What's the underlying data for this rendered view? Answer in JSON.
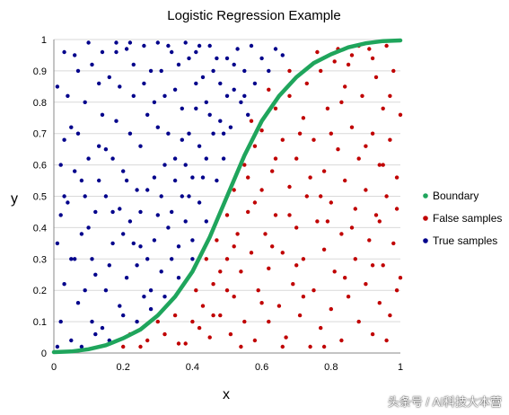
{
  "chart_data": {
    "type": "scatter",
    "title": "Logistic Regression Example",
    "xlabel": "x",
    "ylabel": "y",
    "xlim": [
      0,
      1
    ],
    "ylim": [
      0,
      1
    ],
    "xticks": [
      "0",
      "0.2",
      "0.4",
      "0.6",
      "0.8",
      "1"
    ],
    "yticks": [
      "0",
      "0.1",
      "0.2",
      "0.3",
      "0.4",
      "0.5",
      "0.6",
      "0.7",
      "0.8",
      "0.9",
      "1"
    ],
    "grid": "horizontal",
    "legend_position": "right",
    "series": [
      {
        "name": "Boundary",
        "color": "#1fa55c",
        "points": [
          [
            0,
            0.003
          ],
          [
            0.05,
            0.005
          ],
          [
            0.1,
            0.012
          ],
          [
            0.15,
            0.025
          ],
          [
            0.2,
            0.047
          ],
          [
            0.25,
            0.075
          ],
          [
            0.3,
            0.12
          ],
          [
            0.35,
            0.18
          ],
          [
            0.4,
            0.26
          ],
          [
            0.45,
            0.37
          ],
          [
            0.5,
            0.5
          ],
          [
            0.55,
            0.63
          ],
          [
            0.6,
            0.74
          ],
          [
            0.65,
            0.82
          ],
          [
            0.7,
            0.88
          ],
          [
            0.75,
            0.925
          ],
          [
            0.8,
            0.953
          ],
          [
            0.85,
            0.975
          ],
          [
            0.9,
            0.988
          ],
          [
            0.95,
            0.995
          ],
          [
            1,
            0.997
          ]
        ]
      },
      {
        "name": "False samples",
        "color": "#c00000",
        "points": [
          [
            0.2,
            0.02
          ],
          [
            0.22,
            0.06
          ],
          [
            0.27,
            0.04
          ],
          [
            0.3,
            0.1
          ],
          [
            0.32,
            0.06
          ],
          [
            0.35,
            0.12
          ],
          [
            0.38,
            0.03
          ],
          [
            0.4,
            0.1
          ],
          [
            0.41,
            0.2
          ],
          [
            0.43,
            0.15
          ],
          [
            0.44,
            0.3
          ],
          [
            0.45,
            0.05
          ],
          [
            0.46,
            0.22
          ],
          [
            0.47,
            0.36
          ],
          [
            0.48,
            0.12
          ],
          [
            0.5,
            0.3
          ],
          [
            0.5,
            0.44
          ],
          [
            0.51,
            0.06
          ],
          [
            0.52,
            0.18
          ],
          [
            0.52,
            0.52
          ],
          [
            0.53,
            0.38
          ],
          [
            0.54,
            0.26
          ],
          [
            0.55,
            0.6
          ],
          [
            0.55,
            0.1
          ],
          [
            0.56,
            0.45
          ],
          [
            0.57,
            0.32
          ],
          [
            0.58,
            0.66
          ],
          [
            0.58,
            0.04
          ],
          [
            0.59,
            0.2
          ],
          [
            0.6,
            0.52
          ],
          [
            0.6,
            0.71
          ],
          [
            0.61,
            0.38
          ],
          [
            0.62,
            0.1
          ],
          [
            0.62,
            0.27
          ],
          [
            0.63,
            0.58
          ],
          [
            0.64,
            0.78
          ],
          [
            0.64,
            0.44
          ],
          [
            0.65,
            0.15
          ],
          [
            0.66,
            0.68
          ],
          [
            0.66,
            0.32
          ],
          [
            0.67,
            0.05
          ],
          [
            0.68,
            0.53
          ],
          [
            0.68,
            0.82
          ],
          [
            0.69,
            0.22
          ],
          [
            0.7,
            0.62
          ],
          [
            0.7,
            0.4
          ],
          [
            0.71,
            0.12
          ],
          [
            0.72,
            0.75
          ],
          [
            0.72,
            0.3
          ],
          [
            0.73,
            0.86
          ],
          [
            0.73,
            0.5
          ],
          [
            0.74,
            0.02
          ],
          [
            0.75,
            0.2
          ],
          [
            0.75,
            0.68
          ],
          [
            0.76,
            0.42
          ],
          [
            0.77,
            0.9
          ],
          [
            0.77,
            0.08
          ],
          [
            0.78,
            0.58
          ],
          [
            0.78,
            0.33
          ],
          [
            0.79,
            0.78
          ],
          [
            0.8,
            0.14
          ],
          [
            0.8,
            0.48
          ],
          [
            0.81,
            0.93
          ],
          [
            0.81,
            0.26
          ],
          [
            0.82,
            0.65
          ],
          [
            0.83,
            0.04
          ],
          [
            0.83,
            0.38
          ],
          [
            0.84,
            0.85
          ],
          [
            0.84,
            0.55
          ],
          [
            0.85,
            0.18
          ],
          [
            0.86,
            0.72
          ],
          [
            0.86,
            0.95
          ],
          [
            0.87,
            0.3
          ],
          [
            0.87,
            0.46
          ],
          [
            0.88,
            0.1
          ],
          [
            0.88,
            0.62
          ],
          [
            0.89,
            0.82
          ],
          [
            0.9,
            0.22
          ],
          [
            0.9,
            0.52
          ],
          [
            0.91,
            0.97
          ],
          [
            0.91,
            0.36
          ],
          [
            0.92,
            0.7
          ],
          [
            0.92,
            0.06
          ],
          [
            0.93,
            0.44
          ],
          [
            0.93,
            0.88
          ],
          [
            0.94,
            0.16
          ],
          [
            0.94,
            0.6
          ],
          [
            0.95,
            0.28
          ],
          [
            0.95,
            0.78
          ],
          [
            0.96,
            0.5
          ],
          [
            0.96,
            0.98
          ],
          [
            0.97,
            0.12
          ],
          [
            0.97,
            0.68
          ],
          [
            0.98,
            0.35
          ],
          [
            0.98,
            0.9
          ],
          [
            0.99,
            0.2
          ],
          [
            0.99,
            0.56
          ],
          [
            1,
            0.24
          ],
          [
            1,
            0.76
          ],
          [
            0.88,
            0.98
          ],
          [
            0.82,
            0.97
          ],
          [
            0.76,
            0.96
          ],
          [
            0.85,
            0.92
          ],
          [
            0.92,
            0.94
          ],
          [
            0.68,
            0.9
          ],
          [
            0.62,
            0.84
          ],
          [
            0.57,
            0.74
          ],
          [
            0.46,
            0.12
          ],
          [
            0.36,
            0.03
          ],
          [
            0.25,
            0.02
          ],
          [
            0.64,
            0.62
          ],
          [
            0.7,
            0.28
          ],
          [
            0.79,
            0.42
          ],
          [
            0.58,
            0.48
          ],
          [
            0.52,
            0.34
          ],
          [
            0.48,
            0.26
          ],
          [
            0.74,
            0.56
          ],
          [
            0.66,
            0.02
          ],
          [
            0.92,
            0.28
          ],
          [
            0.86,
            0.4
          ],
          [
            0.97,
            0.82
          ],
          [
            0.6,
            0.16
          ],
          [
            0.54,
            0.02
          ],
          [
            0.42,
            0.08
          ],
          [
            0.78,
            0.02
          ],
          [
            0.96,
            0.04
          ],
          [
            0.72,
            0.18
          ],
          [
            0.8,
            0.7
          ],
          [
            0.9,
            0.66
          ],
          [
            0.63,
            0.34
          ],
          [
            0.56,
            0.56
          ],
          [
            0.5,
            0.2
          ],
          [
            0.68,
            0.44
          ],
          [
            0.84,
            0.24
          ],
          [
            0.94,
            0.42
          ],
          [
            0.99,
            0.46
          ],
          [
            0.77,
            0.5
          ],
          [
            0.71,
            0.7
          ],
          [
            0.83,
            0.8
          ],
          [
            0.95,
            0.6
          ]
        ]
      },
      {
        "name": "True samples",
        "color": "#00008b",
        "points": [
          [
            0.01,
            0.02
          ],
          [
            0.02,
            0.1
          ],
          [
            0.03,
            0.22
          ],
          [
            0.01,
            0.35
          ],
          [
            0.04,
            0.48
          ],
          [
            0.02,
            0.6
          ],
          [
            0.05,
            0.72
          ],
          [
            0.01,
            0.85
          ],
          [
            0.03,
            0.96
          ],
          [
            0.06,
            0.3
          ],
          [
            0.07,
            0.16
          ],
          [
            0.08,
            0.55
          ],
          [
            0.09,
            0.8
          ],
          [
            0.1,
            0.4
          ],
          [
            0.11,
            0.92
          ],
          [
            0.12,
            0.25
          ],
          [
            0.13,
            0.66
          ],
          [
            0.14,
            0.08
          ],
          [
            0.15,
            0.5
          ],
          [
            0.16,
            0.88
          ],
          [
            0.17,
            0.35
          ],
          [
            0.18,
            0.74
          ],
          [
            0.19,
            0.15
          ],
          [
            0.2,
            0.58
          ],
          [
            0.21,
            0.97
          ],
          [
            0.22,
            0.42
          ],
          [
            0.23,
            0.82
          ],
          [
            0.24,
            0.28
          ],
          [
            0.25,
            0.66
          ],
          [
            0.26,
            0.18
          ],
          [
            0.27,
            0.52
          ],
          [
            0.28,
            0.9
          ],
          [
            0.29,
            0.36
          ],
          [
            0.3,
            0.72
          ],
          [
            0.31,
            0.26
          ],
          [
            0.32,
            0.6
          ],
          [
            0.33,
            0.98
          ],
          [
            0.34,
            0.45
          ],
          [
            0.35,
            0.84
          ],
          [
            0.36,
            0.34
          ],
          [
            0.37,
            0.68
          ],
          [
            0.38,
            0.42
          ],
          [
            0.39,
            0.94
          ],
          [
            0.4,
            0.56
          ],
          [
            0.41,
            0.78
          ],
          [
            0.42,
            0.48
          ],
          [
            0.43,
            0.88
          ],
          [
            0.44,
            0.62
          ],
          [
            0.45,
            0.98
          ],
          [
            0.46,
            0.7
          ],
          [
            0.47,
            0.55
          ],
          [
            0.48,
            0.86
          ],
          [
            0.49,
            0.62
          ],
          [
            0.5,
            0.94
          ],
          [
            0.51,
            0.72
          ],
          [
            0.52,
            0.84
          ],
          [
            0.53,
            0.97
          ],
          [
            0.54,
            0.8
          ],
          [
            0.55,
            0.9
          ],
          [
            0.56,
            0.76
          ],
          [
            0.57,
            0.98
          ],
          [
            0.58,
            0.86
          ],
          [
            0.6,
            0.94
          ],
          [
            0.62,
            0.9
          ],
          [
            0.64,
            0.97
          ],
          [
            0.66,
            0.95
          ],
          [
            0.03,
            0.68
          ],
          [
            0.05,
            0.04
          ],
          [
            0.07,
            0.9
          ],
          [
            0.09,
            0.2
          ],
          [
            0.1,
            0.62
          ],
          [
            0.12,
            0.45
          ],
          [
            0.14,
            0.76
          ],
          [
            0.16,
            0.28
          ],
          [
            0.18,
            0.96
          ],
          [
            0.2,
            0.38
          ],
          [
            0.22,
            0.7
          ],
          [
            0.24,
            0.52
          ],
          [
            0.26,
            0.86
          ],
          [
            0.28,
            0.2
          ],
          [
            0.3,
            0.44
          ],
          [
            0.32,
            0.82
          ],
          [
            0.34,
            0.3
          ],
          [
            0.36,
            0.92
          ],
          [
            0.38,
            0.6
          ],
          [
            0.4,
            0.36
          ],
          [
            0.42,
            0.66
          ],
          [
            0.44,
            0.8
          ],
          [
            0.46,
            0.9
          ],
          [
            0.48,
            0.74
          ],
          [
            0.5,
            0.82
          ],
          [
            0.02,
            0.44
          ],
          [
            0.04,
            0.82
          ],
          [
            0.06,
            0.58
          ],
          [
            0.08,
            0.38
          ],
          [
            0.11,
            0.1
          ],
          [
            0.13,
            0.86
          ],
          [
            0.15,
            0.2
          ],
          [
            0.17,
            0.62
          ],
          [
            0.19,
            0.46
          ],
          [
            0.21,
            0.24
          ],
          [
            0.23,
            0.92
          ],
          [
            0.25,
            0.34
          ],
          [
            0.27,
            0.76
          ],
          [
            0.29,
            0.56
          ],
          [
            0.31,
            0.9
          ],
          [
            0.33,
            0.4
          ],
          [
            0.35,
            0.62
          ],
          [
            0.37,
            0.78
          ],
          [
            0.39,
            0.5
          ],
          [
            0.41,
            0.96
          ],
          [
            0.43,
            0.56
          ],
          [
            0.45,
            0.76
          ],
          [
            0.47,
            0.94
          ],
          [
            0.49,
            0.7
          ],
          [
            0.52,
            0.92
          ],
          [
            0.55,
            0.82
          ],
          [
            0.08,
            0.02
          ],
          [
            0.12,
            0.06
          ],
          [
            0.16,
            0.04
          ],
          [
            0.2,
            0.12
          ],
          [
            0.24,
            0.1
          ],
          [
            0.28,
            0.14
          ],
          [
            0.32,
            0.18
          ],
          [
            0.36,
            0.24
          ],
          [
            0.4,
            0.3
          ],
          [
            0.44,
            0.42
          ],
          [
            0.06,
            0.95
          ],
          [
            0.1,
            0.99
          ],
          [
            0.14,
            0.96
          ],
          [
            0.18,
            0.99
          ],
          [
            0.22,
            0.99
          ],
          [
            0.26,
            0.98
          ],
          [
            0.3,
            0.99
          ],
          [
            0.34,
            0.96
          ],
          [
            0.38,
            0.99
          ],
          [
            0.42,
            0.98
          ],
          [
            0.03,
            0.5
          ],
          [
            0.05,
            0.3
          ],
          [
            0.07,
            0.7
          ],
          [
            0.09,
            0.5
          ],
          [
            0.11,
            0.3
          ],
          [
            0.13,
            0.55
          ],
          [
            0.15,
            0.65
          ],
          [
            0.17,
            0.45
          ],
          [
            0.19,
            0.85
          ],
          [
            0.21,
            0.55
          ],
          [
            0.23,
            0.35
          ],
          [
            0.25,
            0.45
          ],
          [
            0.27,
            0.3
          ],
          [
            0.29,
            0.8
          ],
          [
            0.31,
            0.5
          ],
          [
            0.33,
            0.7
          ],
          [
            0.35,
            0.55
          ],
          [
            0.37,
            0.5
          ],
          [
            0.39,
            0.7
          ],
          [
            0.41,
            0.86
          ]
        ]
      }
    ]
  },
  "watermark": "头条号 / AI科技大本营"
}
